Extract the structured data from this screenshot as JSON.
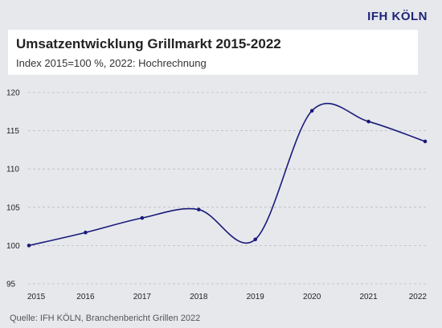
{
  "brand": "IFH KÖLN",
  "chart_data": {
    "type": "line",
    "title": "Umsatzentwicklung Grillmarkt 2015-2022",
    "subtitle": "Index 2015=100 %, 2022: Hochrechnung",
    "x": [
      "2015",
      "2016",
      "2017",
      "2018",
      "2019",
      "2020",
      "2021",
      "2022"
    ],
    "series": [
      {
        "values": [
          100.0,
          101.7,
          103.6,
          104.7,
          100.8,
          117.6,
          116.2,
          113.6
        ]
      }
    ],
    "yticks": [
      95,
      100,
      105,
      110,
      115,
      120
    ],
    "ylim": [
      95,
      120
    ],
    "grid": true,
    "line_color": "#1a1a7a",
    "grid_color": "#b8bcc4",
    "source": "Quelle: IFH KÖLN, Branchenbericht Grillen 2022"
  }
}
